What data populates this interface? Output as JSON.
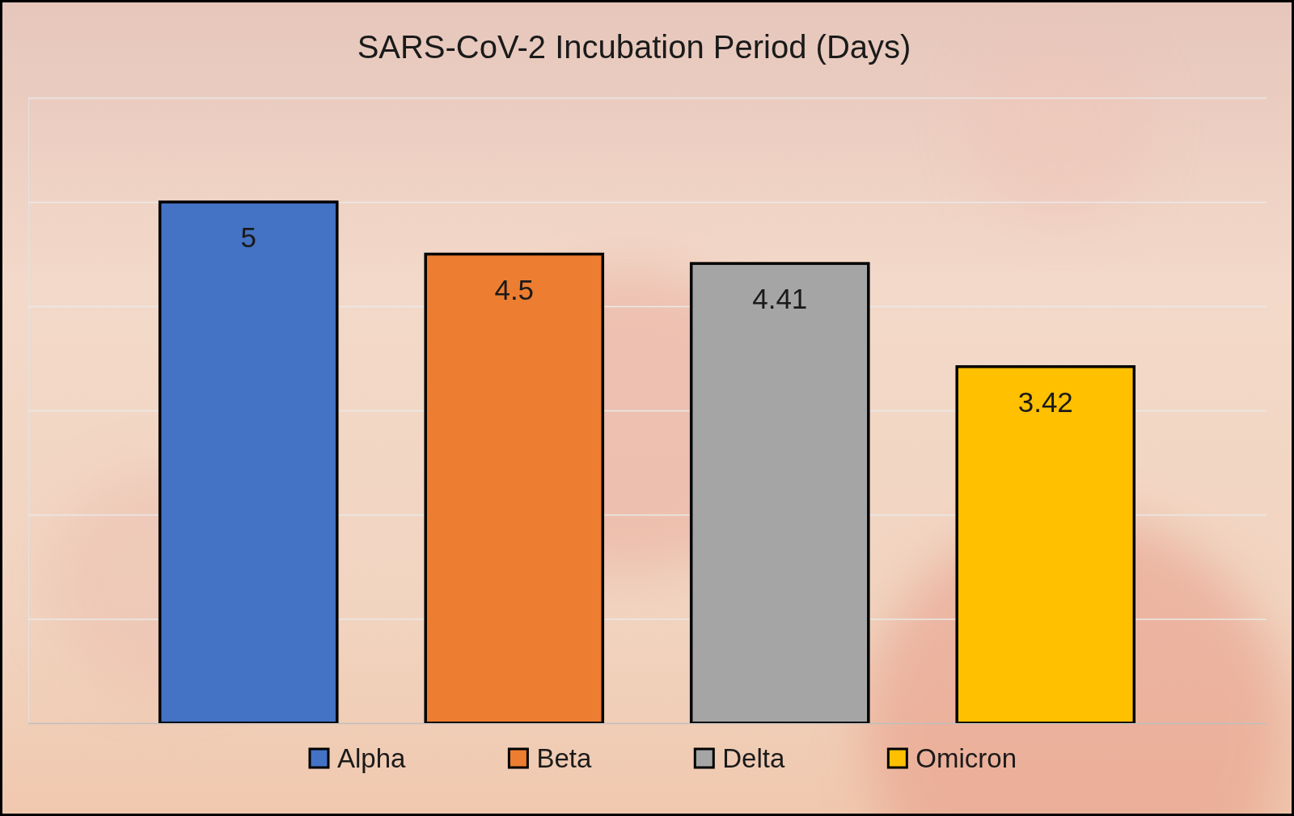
{
  "chart_data": {
    "type": "bar",
    "title": "SARS-CoV-2 Incubation Period (Days)",
    "categories": [
      "Alpha",
      "Beta",
      "Delta",
      "Omicron"
    ],
    "values": [
      5,
      4.5,
      4.41,
      3.42
    ],
    "colors": [
      "#4472c4",
      "#ed7d31",
      "#a5a5a5",
      "#ffc000"
    ],
    "ylim": [
      0,
      6
    ],
    "yticks": [
      0,
      1,
      2,
      3,
      4,
      5,
      6
    ],
    "grid": true,
    "tick_labels": false,
    "data_labels": true,
    "legend": "bottom"
  }
}
